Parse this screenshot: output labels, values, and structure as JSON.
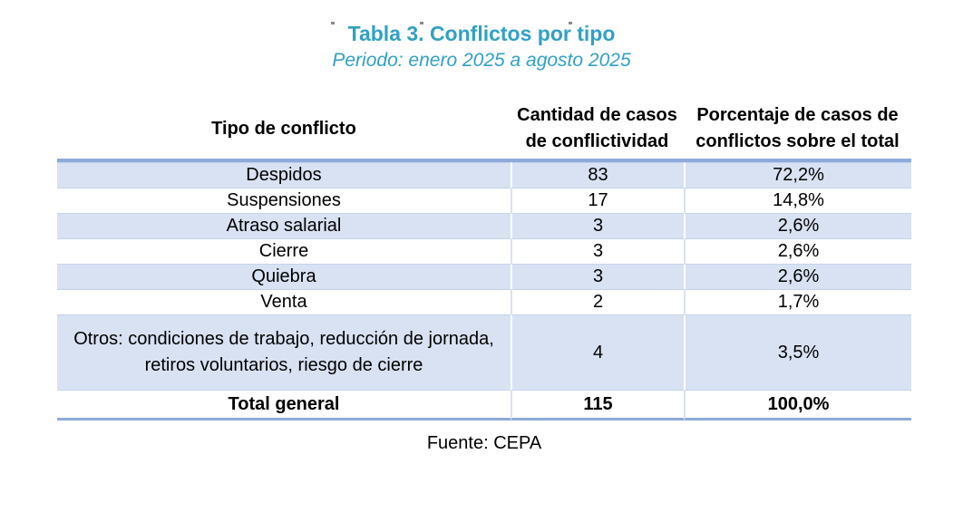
{
  "page": {
    "title": "Tabla 3. Conflictos por tipo",
    "subtitle": "Periodo: enero 2025 a agosto 2025",
    "source": "Fuente: CEPA"
  },
  "colors": {
    "title_teal": "#31a0c6",
    "rule_blue": "#8eaadb",
    "row_shade_blue": "#d9e2f3",
    "grid_line_blue": "#c3d3eb"
  },
  "table": {
    "columns": [
      {
        "label": "Tipo de conflicto"
      },
      {
        "label": "Cantidad de casos de conflictividad"
      },
      {
        "label": "Porcentaje de casos de conflictos sobre el total"
      }
    ],
    "rows": [
      {
        "tipo": "Despidos",
        "cantidad": "83",
        "porcentaje": "72,2%"
      },
      {
        "tipo": "Suspensiones",
        "cantidad": "17",
        "porcentaje": "14,8%"
      },
      {
        "tipo": "Atraso salarial",
        "cantidad": "3",
        "porcentaje": "2,6%"
      },
      {
        "tipo": "Cierre",
        "cantidad": "3",
        "porcentaje": "2,6%"
      },
      {
        "tipo": "Quiebra",
        "cantidad": "3",
        "porcentaje": "2,6%"
      },
      {
        "tipo": "Venta",
        "cantidad": "2",
        "porcentaje": "1,7%"
      },
      {
        "tipo": "Otros: condiciones de trabajo, reducción de jornada, retiros voluntarios, riesgo de cierre",
        "cantidad": "4",
        "porcentaje": "3,5%"
      }
    ],
    "total_row": {
      "tipo": "Total general",
      "cantidad": "115",
      "porcentaje": "100,0%"
    }
  }
}
